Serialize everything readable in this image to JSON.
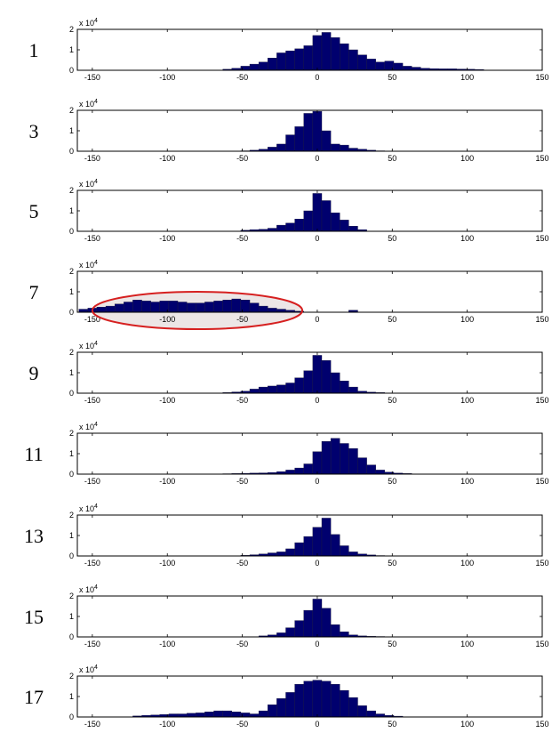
{
  "figure": {
    "exponent_label": "x 10",
    "exponent_power": "4",
    "highlight": {
      "panel": "7",
      "x_range": [
        -150,
        -10
      ],
      "color": "#d62020",
      "fill": "#ece6e6"
    }
  },
  "colors": {
    "bar_fill": "#00006e",
    "bar_stroke": "#1a1a40",
    "axes": "#000000"
  },
  "chart_data": [
    {
      "type": "bar",
      "panel_label": "1",
      "xlim": [
        -160,
        150
      ],
      "ylim": [
        0,
        2
      ],
      "xticks": [
        "-150",
        "-100",
        "-50",
        "0",
        "50",
        "100",
        "150"
      ],
      "yticks": [
        "0",
        "1",
        "2"
      ],
      "bin_width": 6,
      "x": [
        -60,
        -54,
        -48,
        -42,
        -36,
        -30,
        -24,
        -18,
        -12,
        -6,
        0,
        6,
        12,
        18,
        24,
        30,
        36,
        42,
        48,
        54,
        60,
        66,
        72,
        78,
        84,
        90,
        96,
        102,
        108
      ],
      "values": [
        0.05,
        0.1,
        0.2,
        0.3,
        0.4,
        0.6,
        0.85,
        0.95,
        1.05,
        1.2,
        1.7,
        1.85,
        1.6,
        1.3,
        1.0,
        0.75,
        0.55,
        0.4,
        0.45,
        0.35,
        0.2,
        0.15,
        0.1,
        0.08,
        0.07,
        0.07,
        0.06,
        0.05,
        0.04
      ]
    },
    {
      "type": "bar",
      "panel_label": "3",
      "xlim": [
        -160,
        150
      ],
      "ylim": [
        0,
        2
      ],
      "xticks": [
        "-150",
        "-100",
        "-50",
        "0",
        "50",
        "100",
        "150"
      ],
      "yticks": [
        "0",
        "1",
        "2"
      ],
      "bin_width": 6,
      "x": [
        -48,
        -42,
        -36,
        -30,
        -24,
        -18,
        -12,
        -6,
        0,
        6,
        12,
        18,
        24,
        30,
        36,
        42
      ],
      "values": [
        0.02,
        0.05,
        0.1,
        0.2,
        0.35,
        0.8,
        1.2,
        1.85,
        1.95,
        1.0,
        0.35,
        0.3,
        0.15,
        0.1,
        0.05,
        0.02
      ]
    },
    {
      "type": "bar",
      "panel_label": "5",
      "xlim": [
        -160,
        150
      ],
      "ylim": [
        0,
        2
      ],
      "xticks": [
        "-150",
        "-100",
        "-50",
        "0",
        "50",
        "100",
        "150"
      ],
      "yticks": [
        "0",
        "1",
        "2"
      ],
      "bin_width": 6,
      "x": [
        -48,
        -42,
        -36,
        -30,
        -24,
        -18,
        -12,
        -6,
        0,
        6,
        12,
        18,
        24,
        30
      ],
      "values": [
        0.05,
        0.08,
        0.1,
        0.15,
        0.3,
        0.4,
        0.6,
        1.0,
        1.85,
        1.5,
        0.9,
        0.55,
        0.25,
        0.08
      ]
    },
    {
      "type": "bar",
      "panel_label": "7",
      "xlim": [
        -160,
        150
      ],
      "ylim": [
        0,
        2
      ],
      "xticks": [
        "-150",
        "-100",
        "-50",
        "0",
        "50",
        "100",
        "150"
      ],
      "yticks": [
        "0",
        "1",
        "2"
      ],
      "bin_width": 6,
      "x": [
        -156,
        -150,
        -144,
        -138,
        -132,
        -126,
        -120,
        -114,
        -108,
        -102,
        -96,
        -90,
        -84,
        -78,
        -72,
        -66,
        -60,
        -54,
        -48,
        -42,
        -36,
        -30,
        -24,
        -18,
        -12,
        24
      ],
      "values": [
        0.15,
        0.2,
        0.25,
        0.3,
        0.4,
        0.5,
        0.6,
        0.55,
        0.5,
        0.55,
        0.55,
        0.5,
        0.45,
        0.45,
        0.5,
        0.55,
        0.6,
        0.65,
        0.6,
        0.45,
        0.3,
        0.2,
        0.15,
        0.1,
        0.05,
        0.1
      ]
    },
    {
      "type": "bar",
      "panel_label": "9",
      "xlim": [
        -160,
        150
      ],
      "ylim": [
        0,
        2
      ],
      "xticks": [
        "-150",
        "-100",
        "-50",
        "0",
        "50",
        "100",
        "150"
      ],
      "yticks": [
        "0",
        "1",
        "2"
      ],
      "bin_width": 6,
      "x": [
        -60,
        -54,
        -48,
        -42,
        -36,
        -30,
        -24,
        -18,
        -12,
        -6,
        0,
        6,
        12,
        18,
        24,
        30,
        36,
        42
      ],
      "values": [
        0.03,
        0.06,
        0.1,
        0.2,
        0.3,
        0.35,
        0.4,
        0.5,
        0.75,
        1.1,
        1.85,
        1.6,
        1.0,
        0.6,
        0.3,
        0.1,
        0.05,
        0.03
      ]
    },
    {
      "type": "bar",
      "panel_label": "11",
      "xlim": [
        -160,
        150
      ],
      "ylim": [
        0,
        2
      ],
      "xticks": [
        "-150",
        "-100",
        "-50",
        "0",
        "50",
        "100",
        "150"
      ],
      "yticks": [
        "0",
        "1",
        "2"
      ],
      "bin_width": 6,
      "x": [
        -60,
        -54,
        -48,
        -42,
        -36,
        -30,
        -24,
        -18,
        -12,
        -6,
        0,
        6,
        12,
        18,
        24,
        30,
        36,
        42,
        48,
        54,
        60
      ],
      "values": [
        0.02,
        0.03,
        0.04,
        0.05,
        0.06,
        0.08,
        0.12,
        0.2,
        0.3,
        0.5,
        1.1,
        1.6,
        1.75,
        1.5,
        1.25,
        0.8,
        0.45,
        0.2,
        0.1,
        0.05,
        0.03
      ]
    },
    {
      "type": "bar",
      "panel_label": "13",
      "xlim": [
        -160,
        150
      ],
      "ylim": [
        0,
        2
      ],
      "xticks": [
        "-150",
        "-100",
        "-50",
        "0",
        "50",
        "100",
        "150"
      ],
      "yticks": [
        "0",
        "1",
        "2"
      ],
      "bin_width": 6,
      "x": [
        -48,
        -42,
        -36,
        -30,
        -24,
        -18,
        -12,
        -6,
        0,
        6,
        12,
        18,
        24,
        30,
        36,
        42
      ],
      "values": [
        0.03,
        0.06,
        0.1,
        0.15,
        0.2,
        0.35,
        0.65,
        0.95,
        1.4,
        1.85,
        1.05,
        0.5,
        0.2,
        0.1,
        0.05,
        0.02
      ]
    },
    {
      "type": "bar",
      "panel_label": "15",
      "xlim": [
        -160,
        150
      ],
      "ylim": [
        0,
        2
      ],
      "xticks": [
        "-150",
        "-100",
        "-50",
        "0",
        "50",
        "100",
        "150"
      ],
      "yticks": [
        "0",
        "1",
        "2"
      ],
      "bin_width": 6,
      "x": [
        -36,
        -30,
        -24,
        -18,
        -12,
        -6,
        0,
        6,
        12,
        18,
        24,
        30,
        36,
        42
      ],
      "values": [
        0.05,
        0.1,
        0.2,
        0.45,
        0.8,
        1.3,
        1.85,
        1.4,
        0.6,
        0.25,
        0.1,
        0.05,
        0.03,
        0.02
      ]
    },
    {
      "type": "bar",
      "panel_label": "17",
      "xlim": [
        -160,
        150
      ],
      "ylim": [
        0,
        2
      ],
      "xticks": [
        "-150",
        "-100",
        "-50",
        "0",
        "50",
        "100",
        "150"
      ],
      "yticks": [
        "0",
        "1",
        "2"
      ],
      "bin_width": 6,
      "x": [
        -120,
        -114,
        -108,
        -102,
        -96,
        -90,
        -84,
        -78,
        -72,
        -66,
        -60,
        -54,
        -48,
        -42,
        -36,
        -30,
        -24,
        -18,
        -12,
        -6,
        0,
        6,
        12,
        18,
        24,
        30,
        36,
        42,
        48,
        54
      ],
      "values": [
        0.05,
        0.08,
        0.1,
        0.12,
        0.15,
        0.15,
        0.18,
        0.2,
        0.25,
        0.3,
        0.3,
        0.25,
        0.2,
        0.15,
        0.3,
        0.6,
        0.9,
        1.2,
        1.6,
        1.75,
        1.8,
        1.75,
        1.6,
        1.3,
        0.95,
        0.55,
        0.3,
        0.15,
        0.08,
        0.04
      ]
    }
  ]
}
